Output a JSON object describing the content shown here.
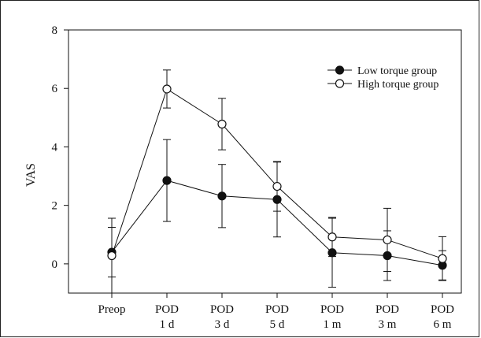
{
  "chart_data": {
    "type": "line",
    "title": "",
    "xlabel": "",
    "ylabel": "VAS",
    "ylim": [
      -1,
      8
    ],
    "yticks": [
      0,
      2,
      4,
      6,
      8
    ],
    "categories": [
      [
        "Preop"
      ],
      [
        "POD",
        "1 d"
      ],
      [
        "POD",
        "3 d"
      ],
      [
        "POD",
        "5 d"
      ],
      [
        "POD",
        "1 m"
      ],
      [
        "POD",
        "3 m"
      ],
      [
        "POD",
        "6 m"
      ]
    ],
    "legend_position": "top-right",
    "series": [
      {
        "name": "Low torque group",
        "marker": "filled",
        "values": [
          0.4,
          2.85,
          2.32,
          2.2,
          0.38,
          0.28,
          -0.05
        ],
        "errors": [
          0.85,
          1.4,
          1.08,
          1.28,
          1.18,
          0.85,
          0.5
        ]
      },
      {
        "name": "High torque group",
        "marker": "open",
        "values": [
          0.28,
          5.98,
          4.78,
          2.65,
          0.92,
          0.82,
          0.18
        ],
        "errors": [
          1.28,
          0.65,
          0.88,
          0.85,
          0.67,
          1.08,
          0.75
        ]
      }
    ]
  }
}
